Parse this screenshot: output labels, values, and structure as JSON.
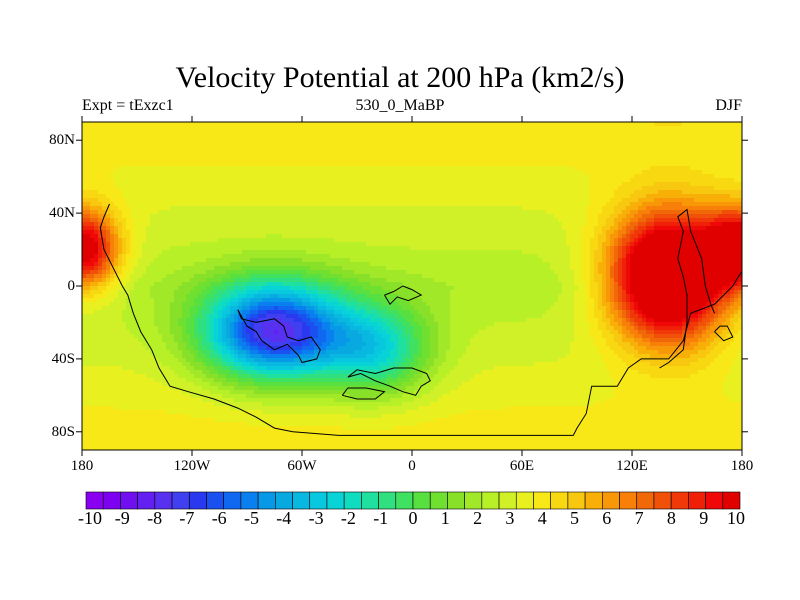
{
  "header": {
    "title": "Velocity Potential at 200 hPa (km2/s)",
    "left_text": "Expt = tExzc1",
    "center_text": "530_0_MaBP",
    "right_text": "DJF"
  },
  "chart_data": {
    "type": "heatmap",
    "title": "Velocity Potential at 200 hPa (km2/s)",
    "projection": "cylindrical-equidistant",
    "x_range": [
      -180,
      180
    ],
    "y_range": [
      -90,
      90
    ],
    "x_tick_values": [
      -180,
      -120,
      -60,
      0,
      60,
      120,
      180
    ],
    "x_tick_labels": [
      "180",
      "120W",
      "60W",
      "0",
      "60E",
      "120E",
      "180"
    ],
    "y_tick_values": [
      80,
      40,
      0,
      -40,
      -80
    ],
    "y_tick_labels": [
      "80N",
      "40N",
      "0",
      "40S",
      "80S"
    ],
    "contour_levels": [
      -10,
      -9.5,
      -9,
      -8.5,
      -8,
      -7.5,
      -7,
      -6.5,
      -6,
      -5.5,
      -5,
      -4.5,
      -4,
      -3.5,
      -3,
      -2.5,
      -2,
      -1.5,
      -1,
      -0.5,
      0,
      0.5,
      1,
      1.5,
      2,
      2.5,
      3,
      3.5,
      4,
      4.5,
      5,
      5.5,
      6,
      6.5,
      7,
      7.5,
      8,
      8.5,
      9,
      9.5,
      10
    ],
    "colorbar_labels": [
      "-10",
      "-9",
      "-8",
      "-7",
      "-6",
      "-5",
      "-4",
      "-3",
      "-2",
      "-1",
      "0",
      "1",
      "2",
      "3",
      "4",
      "5",
      "6",
      "7",
      "8",
      "9",
      "10"
    ],
    "colors": [
      "#8a00f0",
      "#7d00f0",
      "#7010f0",
      "#6420f0",
      "#5830f0",
      "#4040f0",
      "#2a38f0",
      "#1a50f0",
      "#1068f0",
      "#0a80f0",
      "#0898e8",
      "#08a8e0",
      "#08b8e0",
      "#08c8e0",
      "#08d4d8",
      "#10dcc0",
      "#20e0a0",
      "#30e080",
      "#40e060",
      "#58e040",
      "#70e030",
      "#88e028",
      "#a0e828",
      "#b8f028",
      "#d0f028",
      "#e8f020",
      "#f8e818",
      "#f8d810",
      "#f8c810",
      "#f8b008",
      "#f89808",
      "#f88008",
      "#f06808",
      "#f05008",
      "#f03808",
      "#f02008",
      "#f00808",
      "#e00000"
    ],
    "field_centers": [
      {
        "lon": -75,
        "lat": -25,
        "value": -10.5,
        "spread_lon": 38,
        "spread_lat": 26
      },
      {
        "lon": -20,
        "lat": -35,
        "value": -5,
        "spread_lon": 30,
        "spread_lat": 25
      },
      {
        "lon": 140,
        "lat": 5,
        "value": 11.5,
        "spread_lon": 32,
        "spread_lat": 35
      },
      {
        "lon": -180,
        "lat": 20,
        "value": 8,
        "spread_lon": 20,
        "spread_lat": 22
      },
      {
        "lon": 180,
        "lat": 20,
        "value": 8,
        "spread_lon": 20,
        "spread_lat": 22
      }
    ],
    "coastlines": [
      [
        [
          -165,
          45
        ],
        [
          -168,
          38
        ],
        [
          -170,
          32
        ],
        [
          -168,
          20
        ],
        [
          -163,
          10
        ],
        [
          -158,
          0
        ],
        [
          -155,
          -5
        ],
        [
          -152,
          -15
        ],
        [
          -148,
          -25
        ],
        [
          -145,
          -30
        ],
        [
          -142,
          -35
        ],
        [
          -138,
          -45
        ],
        [
          -132,
          -55
        ],
        [
          -122,
          -58
        ],
        [
          -108,
          -62
        ],
        [
          -95,
          -67
        ],
        [
          -85,
          -72
        ],
        [
          -75,
          -78
        ],
        [
          -65,
          -80
        ],
        [
          -40,
          -82
        ],
        [
          -10,
          -82
        ],
        [
          20,
          -82
        ],
        [
          50,
          -82
        ],
        [
          88,
          -82
        ],
        [
          90,
          -78
        ],
        [
          95,
          -70
        ],
        [
          98,
          -55
        ],
        [
          108,
          -55
        ],
        [
          112,
          -55
        ],
        [
          118,
          -45
        ],
        [
          125,
          -40
        ],
        [
          140,
          -40
        ],
        [
          148,
          -30
        ],
        [
          152,
          -15
        ],
        [
          165,
          -10
        ],
        [
          170,
          -5
        ],
        [
          175,
          0
        ],
        [
          178,
          5
        ],
        [
          180,
          8
        ]
      ],
      [
        [
          -95,
          -13
        ],
        [
          -93,
          -18
        ],
        [
          -85,
          -20
        ],
        [
          -75,
          -18
        ],
        [
          -70,
          -22
        ],
        [
          -68,
          -28
        ],
        [
          -62,
          -30
        ],
        [
          -55,
          -28
        ],
        [
          -50,
          -35
        ],
        [
          -52,
          -40
        ],
        [
          -60,
          -42
        ],
        [
          -62,
          -38
        ],
        [
          -68,
          -32
        ],
        [
          -75,
          -35
        ],
        [
          -82,
          -30
        ],
        [
          -85,
          -25
        ],
        [
          -90,
          -22
        ],
        [
          -95,
          -13
        ]
      ],
      [
        [
          -15,
          -5
        ],
        [
          -10,
          -3
        ],
        [
          -5,
          0
        ],
        [
          0,
          -2
        ],
        [
          5,
          -5
        ],
        [
          -2,
          -8
        ],
        [
          -8,
          -6
        ],
        [
          -12,
          -10
        ],
        [
          -15,
          -5
        ]
      ],
      [
        [
          -35,
          -50
        ],
        [
          -28,
          -48
        ],
        [
          -20,
          -52
        ],
        [
          -12,
          -55
        ],
        [
          -5,
          -58
        ],
        [
          2,
          -60
        ],
        [
          5,
          -55
        ],
        [
          10,
          -52
        ],
        [
          8,
          -48
        ],
        [
          0,
          -45
        ],
        [
          -10,
          -45
        ],
        [
          -20,
          -48
        ],
        [
          -30,
          -46
        ],
        [
          -35,
          -50
        ]
      ],
      [
        [
          -38,
          -60
        ],
        [
          -30,
          -62
        ],
        [
          -20,
          -62
        ],
        [
          -15,
          -58
        ],
        [
          -25,
          -56
        ],
        [
          -35,
          -56
        ],
        [
          -38,
          -60
        ]
      ],
      [
        [
          135,
          -45
        ],
        [
          140,
          -42
        ],
        [
          148,
          -35
        ],
        [
          150,
          -20
        ],
        [
          150,
          -5
        ],
        [
          148,
          5
        ],
        [
          145,
          15
        ],
        [
          148,
          30
        ],
        [
          145,
          38
        ],
        [
          150,
          42
        ],
        [
          152,
          30
        ],
        [
          158,
          15
        ],
        [
          160,
          0
        ],
        [
          163,
          -10
        ],
        [
          165,
          -15
        ]
      ],
      [
        [
          165,
          -25
        ],
        [
          170,
          -30
        ],
        [
          175,
          -28
        ],
        [
          172,
          -22
        ],
        [
          168,
          -22
        ],
        [
          165,
          -25
        ]
      ]
    ]
  }
}
